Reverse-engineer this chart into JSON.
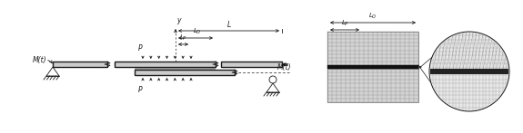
{
  "fig_width": 5.75,
  "fig_height": 1.47,
  "dpi": 100,
  "bg_color": "#ffffff",
  "lc": "#1a1a1a",
  "lw_beam": 1.0,
  "lw_thin": 0.6,
  "beam_fill": "#cccccc",
  "mesh_fill": "#d0d0d0",
  "contact_fill": "#222222",
  "label_Mt": "M(t)",
  "label_P": "P",
  "label_L": "L",
  "label_Lo": "$L_O$",
  "label_Lp": "$L_P$",
  "label_y": "y"
}
